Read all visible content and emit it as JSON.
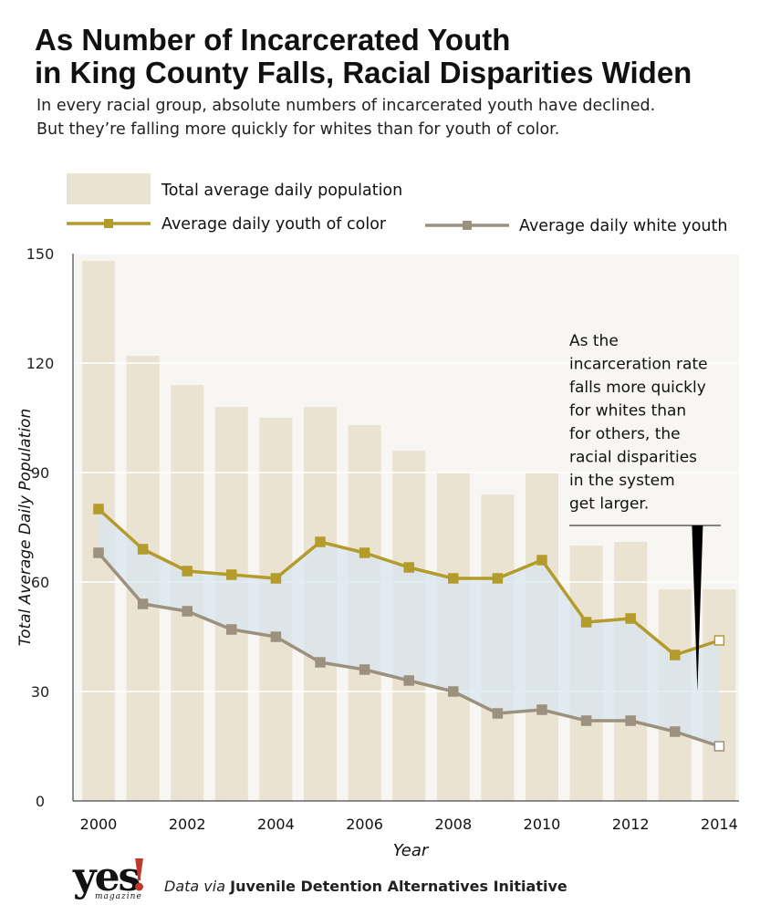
{
  "header": {
    "title_line1": "As Number of Incarcerated Youth",
    "title_line2": "in King County Falls, Racial Disparities Widen",
    "subtitle_line1": "In every racial group, absolute numbers of incarcerated youth have declined.",
    "subtitle_line2": "But they’re falling more quickly for whites than for youth of color."
  },
  "colors": {
    "bar": "#ebe3d1",
    "youth_of_color": "#b39b2c",
    "white_youth": "#9c917e",
    "gap_fill": "#d8e6ef",
    "grid": "#ffffff",
    "axis": "#222222"
  },
  "chart_data": {
    "type": "bar",
    "x": [
      2000,
      2001,
      2002,
      2003,
      2004,
      2005,
      2006,
      2007,
      2008,
      2009,
      2010,
      2011,
      2012,
      2013,
      2014
    ],
    "x_tick_labels": [
      "2000",
      "2002",
      "2004",
      "2006",
      "2008",
      "2010",
      "2012",
      "2014"
    ],
    "xlabel": "Year",
    "ylabel": "Total Average Daily Population",
    "ylim": [
      0,
      150
    ],
    "y_tick_labels": [
      "0",
      "30",
      "60",
      "90",
      "120",
      "150"
    ],
    "y_ticks": [
      0,
      30,
      60,
      90,
      120,
      150
    ],
    "grid": true,
    "legend_position": "top",
    "series": [
      {
        "name": "Total average daily population",
        "type": "bar",
        "values": [
          148,
          122,
          114,
          108,
          105,
          108,
          103,
          96,
          90,
          84,
          90,
          70,
          71,
          58,
          58
        ]
      },
      {
        "name": "Average daily youth of color",
        "type": "line",
        "values": [
          80,
          69,
          63,
          62,
          61,
          71,
          68,
          64,
          61,
          61,
          66,
          49,
          50,
          40,
          44
        ]
      },
      {
        "name": "Average daily white youth",
        "type": "line",
        "values": [
          68,
          54,
          52,
          47,
          45,
          38,
          36,
          33,
          30,
          24,
          25,
          22,
          22,
          19,
          15
        ]
      }
    ],
    "annotation": {
      "text": [
        "As the",
        "incarceration rate",
        "falls more quickly",
        "for whites than",
        "for others, the",
        "racial disparities",
        "in the system",
        "get larger."
      ]
    }
  },
  "footer": {
    "source_prefix": "Data via",
    "source_org": "Juvenile Detention Alternatives Initiative",
    "logo_word": "yes",
    "logo_bang": "!",
    "logo_sub": "magazine"
  }
}
